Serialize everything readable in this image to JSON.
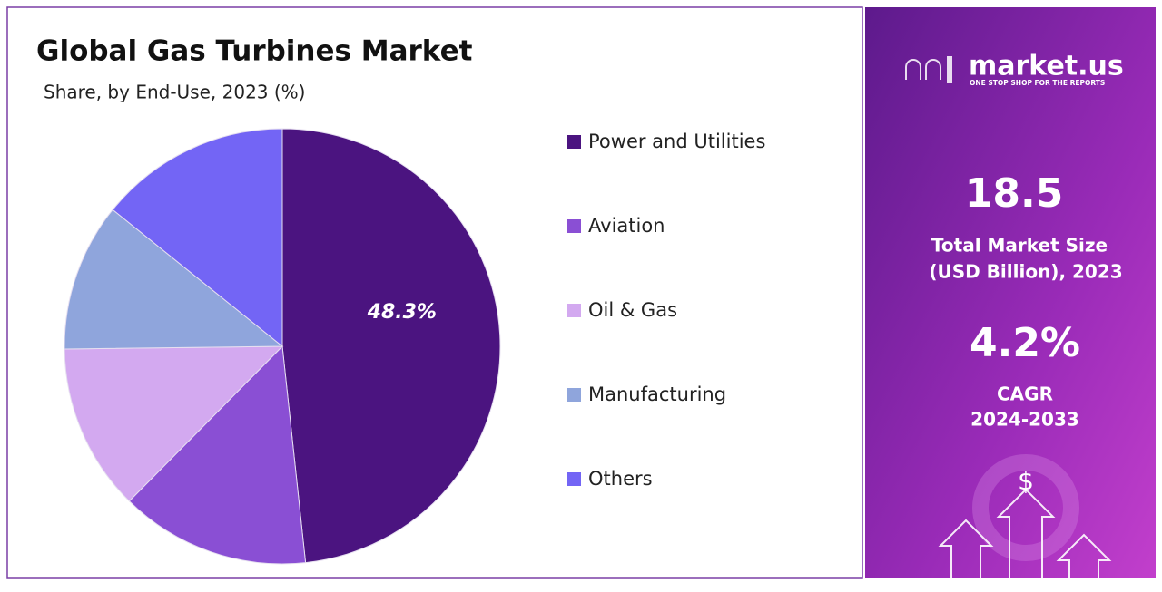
{
  "chart_data": {
    "type": "pie",
    "title": "Global Gas Turbines Market",
    "subtitle": "Share, by End-Use, 2023 (%)",
    "categories": [
      "Power and Utilities",
      "Aviation",
      "Oil & Gas",
      "Manufacturing",
      "Others"
    ],
    "values": [
      48.3,
      14.1,
      12.4,
      11.0,
      14.2
    ],
    "value_labels": [
      "48.3%",
      null,
      null,
      null,
      null
    ],
    "colors": [
      "#4b1480",
      "#8a4fd4",
      "#d3a9f0",
      "#8fa5dc",
      "#7365f5"
    ]
  },
  "panel": {
    "brand": "market.us",
    "tagline": "ONE STOP SHOP FOR THE REPORTS",
    "market_size": "18.5",
    "market_size_label": [
      "Total Market Size",
      "(USD Billion), 2023"
    ],
    "cagr": "4.2%",
    "cagr_label": [
      "CAGR",
      "2024-2033"
    ]
  }
}
